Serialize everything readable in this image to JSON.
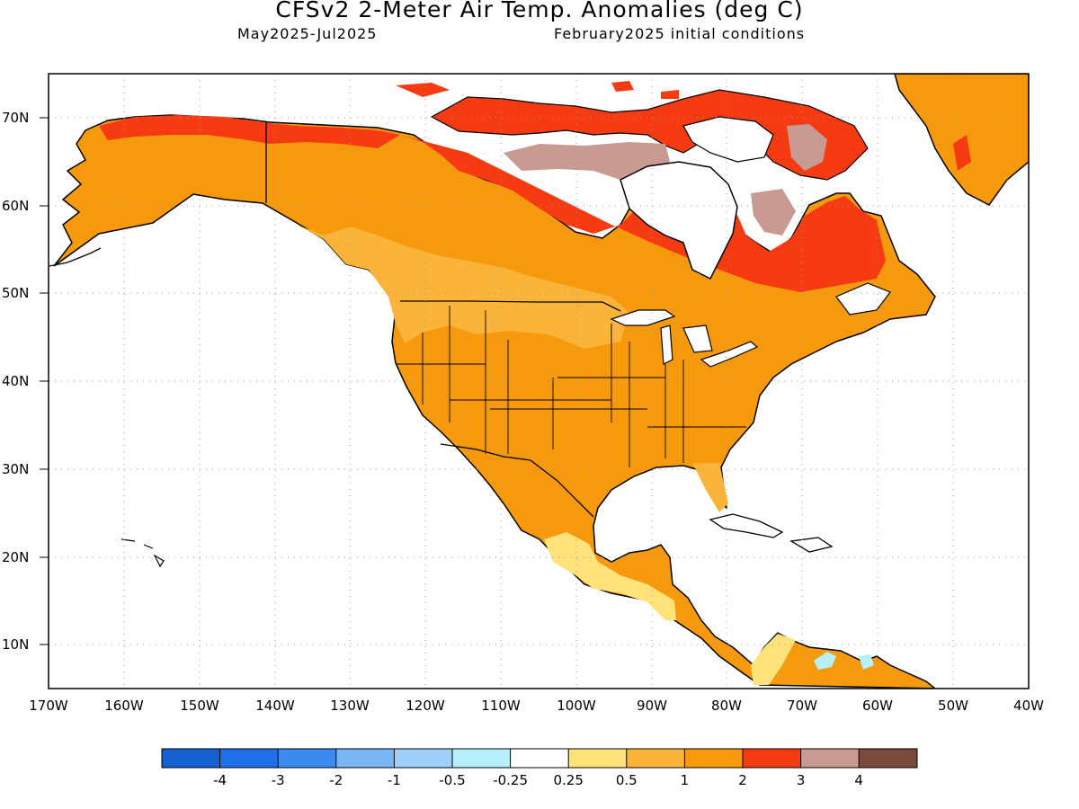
{
  "title": "CFSv2 2-Meter Air Temp. Anomalies (deg C)",
  "subtitle_left": "May2025-Jul2025",
  "subtitle_right": "February2025 initial conditions",
  "lat_labels": [
    "10N",
    "20N",
    "30N",
    "40N",
    "50N",
    "60N",
    "70N"
  ],
  "lon_labels": [
    "170W",
    "160W",
    "150W",
    "140W",
    "130W",
    "120W",
    "110W",
    "100W",
    "90W",
    "80W",
    "70W",
    "60W",
    "50W",
    "40W"
  ],
  "colorbar": {
    "labels": [
      "-4",
      "-3",
      "-2",
      "-1",
      "-0.5",
      "-0.25",
      "0.25",
      "0.5",
      "1",
      "2",
      "3",
      "4"
    ],
    "colors": [
      "#1560d0",
      "#1f6fe6",
      "#3c8cf0",
      "#78b6f6",
      "#9ed0fa",
      "#b6f0fc",
      "#ffffff",
      "#ffe27a",
      "#fbb43a",
      "#f7990d",
      "#f63a12",
      "#c99a92",
      "#7a4a3c"
    ]
  },
  "map": {
    "domain": "North America",
    "lon_range": [
      -170,
      -40
    ],
    "lat_range": [
      5,
      75
    ],
    "ocean_color": "#ffffff",
    "anomaly_regions": [
      {
        "region": "Contiguous US / Mexico",
        "category": "1 to 2",
        "color": "#f7990d"
      },
      {
        "region": "Alaska / Western Canada",
        "category": "1 to 2",
        "color": "#f7990d"
      },
      {
        "region": "Pacific Northwest / BC coast",
        "category": "0.5 to 1",
        "color": "#fbb43a"
      },
      {
        "region": "Southern Mexico / Central America",
        "category": "0.25 to 0.5",
        "color": "#ffe27a"
      },
      {
        "region": "Northern Canada / Hudson Bay rim / Quebec / Labrador",
        "category": "2 to 3",
        "color": "#f63a12"
      },
      {
        "region": "Baffin Island / Ungava",
        "category": "3 to 4",
        "color": "#c99a92"
      },
      {
        "region": "Greenland",
        "category": "1 to 2",
        "color": "#f7990d"
      },
      {
        "region": "Northern South America (small patches)",
        "category": "-0.5 to -0.25",
        "color": "#b6f0fc"
      }
    ]
  }
}
